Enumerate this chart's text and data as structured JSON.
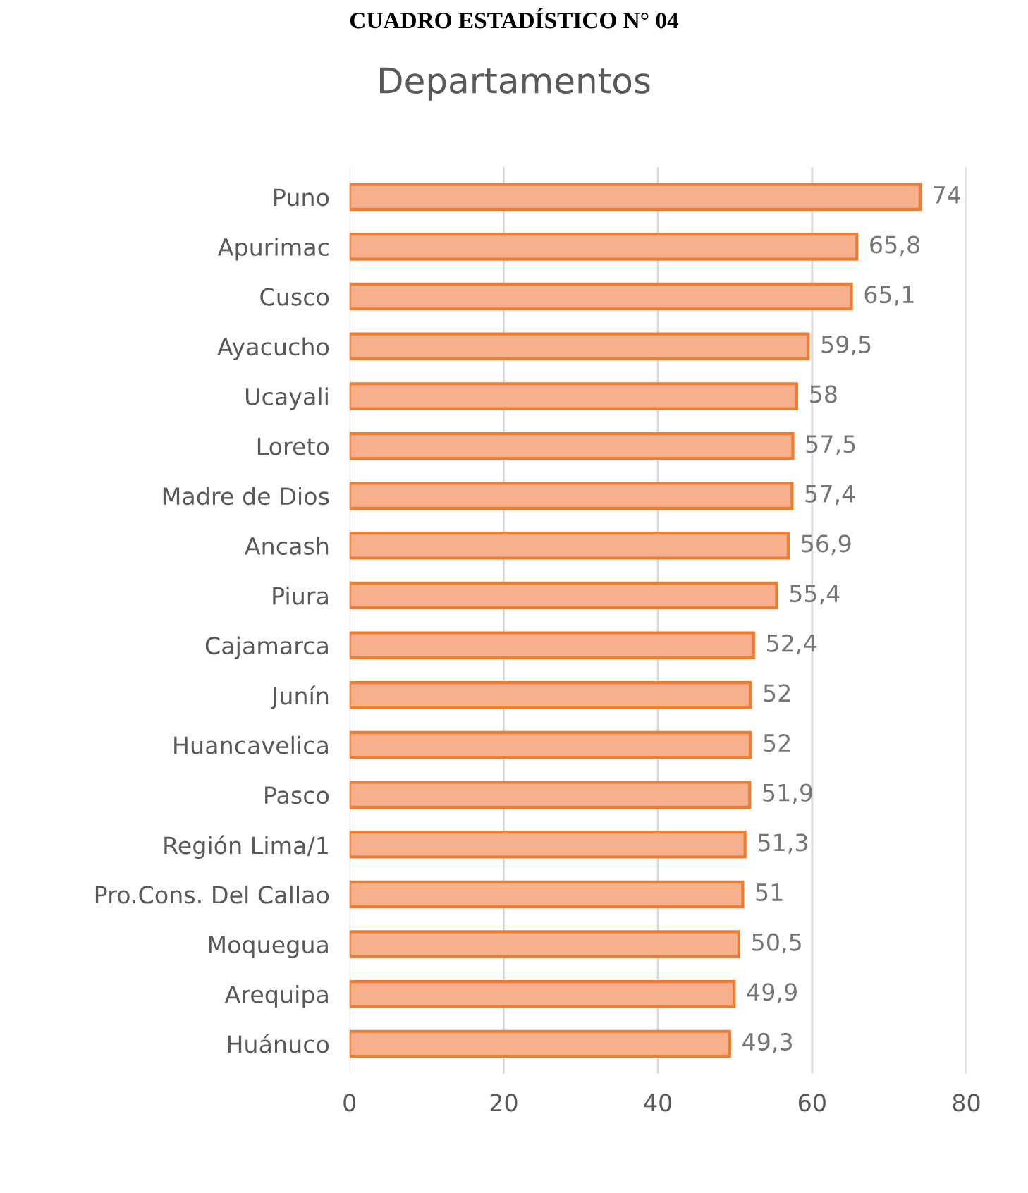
{
  "chart_data": {
    "type": "bar",
    "orientation": "horizontal",
    "title": "Departamentos",
    "annotations": [
      "CUADRO ESTADÍSTICO N° 04"
    ],
    "categories": [
      "Puno",
      "Apurimac",
      "Cusco",
      "Ayacucho",
      "Ucayali",
      "Loreto",
      "Madre de Dios",
      "Ancash",
      "Piura",
      "Cajamarca",
      "Junín",
      "Huancavelica",
      "Pasco",
      "Región Lima/1",
      "Pro.Cons. Del Callao",
      "Moquegua",
      "Arequipa",
      "Huánuco"
    ],
    "values": [
      74,
      65.8,
      65.1,
      59.5,
      58,
      57.5,
      57.4,
      56.9,
      55.4,
      52.4,
      52,
      52,
      51.9,
      51.3,
      51,
      50.5,
      49.9,
      49.3
    ],
    "value_labels": [
      "74",
      "65,8",
      "65,1",
      "59,5",
      "58",
      "57,5",
      "57,4",
      "56,9",
      "55,4",
      "52,4",
      "52",
      "52",
      "51,9",
      "51,3",
      "51",
      "50,5",
      "49,9",
      "49,3"
    ],
    "color": "#f8b08c",
    "xlim": [
      0,
      80
    ],
    "xticks": [
      0,
      20,
      40,
      60,
      80
    ],
    "grid": "x",
    "legend": false
  }
}
